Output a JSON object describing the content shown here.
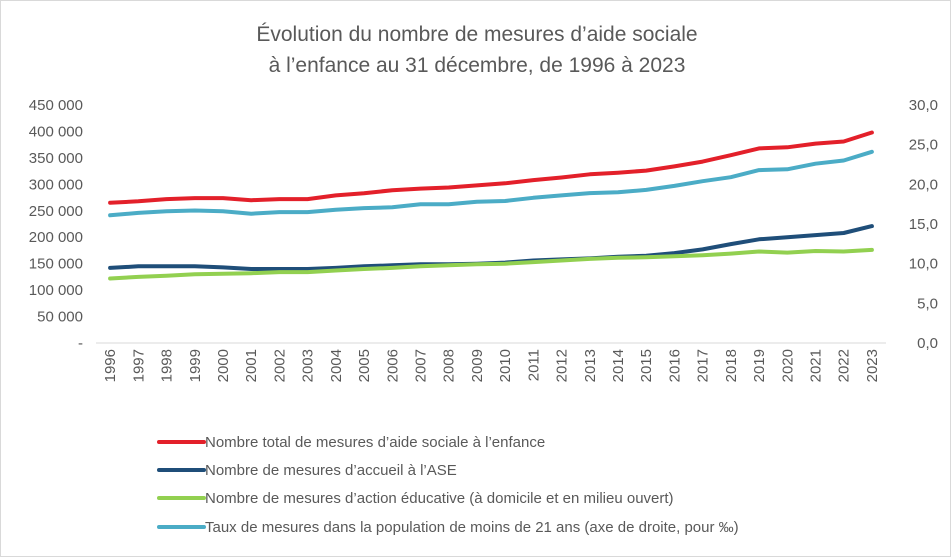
{
  "chart_data": {
    "type": "line",
    "title": [
      "Évolution du nombre de mesures d’aide sociale",
      "à l’enfance au 31 décembre, de 1996 à 2023"
    ],
    "x": [
      "1996",
      "1997",
      "1998",
      "1999",
      "2000",
      "2001",
      "2002",
      "2003",
      "2004",
      "2005",
      "2006",
      "2007",
      "2008",
      "2009",
      "2010",
      "2011",
      "2012",
      "2013",
      "2014",
      "2015",
      "2016",
      "2017",
      "2018",
      "2019",
      "2020",
      "2021",
      "2022",
      "2023"
    ],
    "y_left": {
      "ticks": [
        "-",
        "50 000",
        "100 000",
        "150 000",
        "200 000",
        "250 000",
        "300 000",
        "350 000",
        "400 000",
        "450 000"
      ],
      "range": [
        0,
        450000
      ]
    },
    "y_right": {
      "ticks": [
        "0,0",
        "5,0",
        "10,0",
        "15,0",
        "20,0",
        "25,0",
        "30,0"
      ],
      "range": [
        0,
        30
      ]
    },
    "grid": false,
    "legend_position": "bottom",
    "series": [
      {
        "name": "Nombre total de mesures d’aide sociale à l’enfance",
        "color": "#e3202a",
        "axis": "left",
        "values": [
          265000,
          268000,
          272000,
          274000,
          274000,
          270000,
          272000,
          272000,
          279000,
          283000,
          289000,
          292000,
          294000,
          298000,
          302000,
          308000,
          313000,
          319000,
          322000,
          326000,
          334000,
          343000,
          355000,
          368000,
          370000,
          377000,
          381000,
          398000
        ]
      },
      {
        "name": "Nombre de mesures d’accueil à l’ASE",
        "color": "#1f4e79",
        "axis": "left",
        "values": [
          142000,
          145000,
          145000,
          145000,
          143000,
          140000,
          140000,
          140000,
          142000,
          145000,
          147000,
          149000,
          149000,
          150000,
          152000,
          156000,
          158000,
          160000,
          163000,
          165000,
          170000,
          177000,
          187000,
          196000,
          200000,
          204000,
          208000,
          221000
        ]
      },
      {
        "name": "Nombre de mesures d’action éducative (à domicile et en milieu ouvert)",
        "color": "#92d050",
        "axis": "left",
        "values": [
          122000,
          125000,
          127000,
          130000,
          131000,
          132000,
          134000,
          134000,
          137000,
          140000,
          142000,
          145000,
          147000,
          149000,
          150000,
          153000,
          156000,
          159000,
          161000,
          162000,
          164000,
          166000,
          169000,
          173000,
          171000,
          174000,
          173000,
          176000
        ]
      },
      {
        "name": "Taux de mesures dans la population de moins de 21 ans (axe de droite, pour ‰)",
        "color": "#4bacc6",
        "axis": "right",
        "values": [
          16.1,
          16.4,
          16.6,
          16.7,
          16.6,
          16.3,
          16.5,
          16.5,
          16.8,
          17.0,
          17.1,
          17.5,
          17.5,
          17.8,
          17.9,
          18.3,
          18.6,
          18.9,
          19.0,
          19.3,
          19.8,
          20.4,
          20.9,
          21.8,
          21.9,
          22.6,
          23.0,
          24.1
        ]
      }
    ]
  }
}
